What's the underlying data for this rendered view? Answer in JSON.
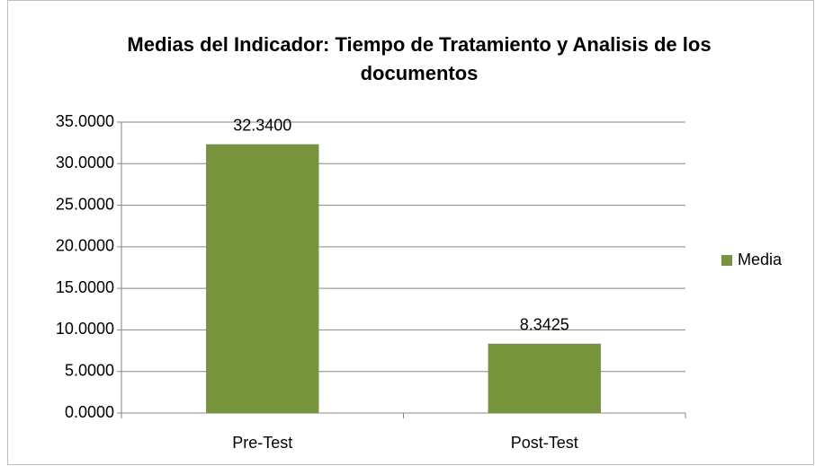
{
  "chart_data": {
    "type": "bar",
    "title": "Medias del Indicador: Tiempo de Tratamiento y Analisis de los documentos",
    "categories": [
      "Pre-Test",
      "Post-Test"
    ],
    "series": [
      {
        "name": "Media",
        "color": "#77933c",
        "values": [
          32.34,
          8.3425
        ],
        "value_labels": [
          "32.3400",
          "8.3425"
        ]
      }
    ],
    "ylim": [
      0,
      35
    ],
    "yticks": [
      {
        "value": 0,
        "label": "0.0000"
      },
      {
        "value": 5,
        "label": "5.0000"
      },
      {
        "value": 10,
        "label": "10.0000"
      },
      {
        "value": 15,
        "label": "15.0000"
      },
      {
        "value": 20,
        "label": "20.0000"
      },
      {
        "value": 25,
        "label": "25.0000"
      },
      {
        "value": 30,
        "label": "30.0000"
      },
      {
        "value": 35,
        "label": "35.0000"
      }
    ],
    "grid": true,
    "legend": "right"
  }
}
